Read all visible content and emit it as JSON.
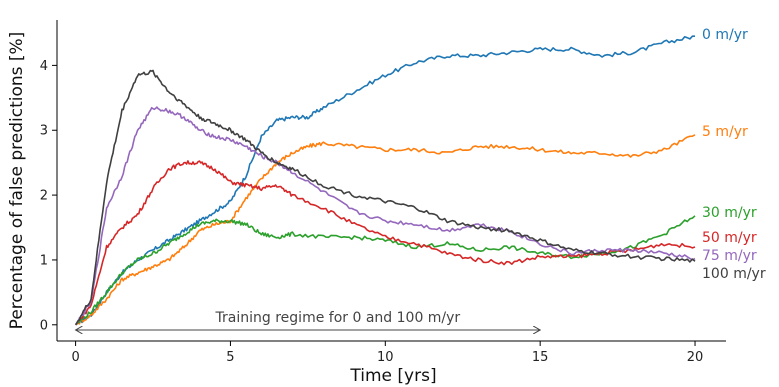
{
  "chart_data": {
    "type": "line",
    "xlabel": "Time [yrs]",
    "ylabel": "Percentage of false predictions [%]",
    "xlim": [
      -0.6,
      21
    ],
    "ylim": [
      -0.25,
      4.7
    ],
    "xticks": [
      0,
      5,
      10,
      15,
      20
    ],
    "yticks": [
      0,
      1,
      2,
      3,
      4
    ],
    "grid": false,
    "legend": "inline labels at right end of each line",
    "annotation": {
      "text": "Training regime for 0 and 100 m/yr",
      "x_start": 0,
      "x_end": 15,
      "y": -0.08
    },
    "series": [
      {
        "name": "0 m/yr",
        "color": "#1f77b4",
        "x": [
          0,
          0.5,
          1,
          1.5,
          2,
          2.5,
          3,
          3.5,
          4,
          4.5,
          5,
          5.5,
          6,
          6.5,
          7,
          7.5,
          8,
          9,
          10,
          11,
          12,
          13,
          14,
          15,
          16,
          17,
          18,
          19,
          20
        ],
        "y": [
          0,
          0.15,
          0.5,
          0.8,
          1.0,
          1.15,
          1.3,
          1.45,
          1.6,
          1.75,
          1.9,
          2.3,
          2.9,
          3.15,
          3.2,
          3.2,
          3.35,
          3.6,
          3.85,
          4.05,
          4.15,
          4.15,
          4.2,
          4.25,
          4.25,
          4.15,
          4.2,
          4.35,
          4.45
        ]
      },
      {
        "name": "5 m/yr",
        "color": "#ff7f0e",
        "x": [
          0,
          0.5,
          1,
          1.5,
          2,
          2.5,
          3,
          3.5,
          4,
          4.5,
          5,
          5.5,
          6,
          6.5,
          7,
          7.5,
          8,
          9,
          10,
          11,
          12,
          13,
          14,
          15,
          16,
          17,
          18,
          19,
          20
        ],
        "y": [
          0,
          0.15,
          0.4,
          0.7,
          0.8,
          0.9,
          1.0,
          1.2,
          1.45,
          1.55,
          1.6,
          1.95,
          2.25,
          2.5,
          2.65,
          2.75,
          2.8,
          2.75,
          2.7,
          2.7,
          2.65,
          2.75,
          2.75,
          2.7,
          2.65,
          2.65,
          2.6,
          2.7,
          2.93
        ]
      },
      {
        "name": "30 m/yr",
        "color": "#2ca02c",
        "x": [
          0,
          0.5,
          1,
          1.5,
          2,
          2.5,
          3,
          3.5,
          4,
          4.5,
          5,
          5.5,
          6,
          6.5,
          7,
          8,
          9,
          10,
          11,
          12,
          13,
          14,
          15,
          16,
          17,
          18,
          19,
          20
        ],
        "y": [
          0,
          0.2,
          0.5,
          0.8,
          1.0,
          1.1,
          1.25,
          1.4,
          1.55,
          1.6,
          1.6,
          1.55,
          1.4,
          1.35,
          1.4,
          1.35,
          1.35,
          1.3,
          1.2,
          1.25,
          1.15,
          1.2,
          1.1,
          1.05,
          1.1,
          1.2,
          1.4,
          1.68
        ]
      },
      {
        "name": "50 m/yr",
        "color": "#d62728",
        "x": [
          0,
          0.5,
          1,
          1.5,
          2,
          2.5,
          3,
          3.5,
          4,
          4.5,
          5,
          5.5,
          6,
          6.5,
          7,
          8,
          9,
          10,
          11,
          12,
          13,
          14,
          15,
          16,
          17,
          18,
          19,
          20
        ],
        "y": [
          0,
          0.3,
          1.2,
          1.5,
          1.7,
          2.1,
          2.4,
          2.5,
          2.5,
          2.4,
          2.2,
          2.15,
          2.1,
          2.15,
          2.0,
          1.8,
          1.55,
          1.35,
          1.25,
          1.1,
          1.0,
          0.95,
          1.05,
          1.05,
          1.1,
          1.15,
          1.25,
          1.2
        ]
      },
      {
        "name": "75 m/yr",
        "color": "#9467bd",
        "x": [
          0,
          0.5,
          1,
          1.5,
          2,
          2.5,
          3,
          3.5,
          4,
          4.5,
          5,
          5.5,
          6,
          6.5,
          7,
          8,
          9,
          10,
          11,
          12,
          13,
          14,
          15,
          16,
          17,
          18,
          19,
          20
        ],
        "y": [
          0,
          0.35,
          1.8,
          2.3,
          3.0,
          3.35,
          3.3,
          3.2,
          3.0,
          2.9,
          2.85,
          2.75,
          2.6,
          2.5,
          2.35,
          2.05,
          1.75,
          1.6,
          1.55,
          1.45,
          1.55,
          1.45,
          1.25,
          1.1,
          1.15,
          1.15,
          1.1,
          1.02
        ]
      },
      {
        "name": "100 m/yr",
        "color": "#404040",
        "x": [
          0,
          0.5,
          1,
          1.5,
          2,
          2.5,
          3,
          3.5,
          4,
          4.5,
          5,
          5.5,
          6,
          6.5,
          7,
          8,
          9,
          10,
          11,
          12,
          13,
          14,
          15,
          16,
          17,
          18,
          19,
          20
        ],
        "y": [
          0,
          0.4,
          2.2,
          3.3,
          3.85,
          3.9,
          3.6,
          3.4,
          3.2,
          3.1,
          3.0,
          2.85,
          2.65,
          2.5,
          2.4,
          2.15,
          2.0,
          1.9,
          1.8,
          1.6,
          1.5,
          1.45,
          1.3,
          1.15,
          1.1,
          1.05,
          1.02,
          0.98
        ]
      }
    ]
  }
}
